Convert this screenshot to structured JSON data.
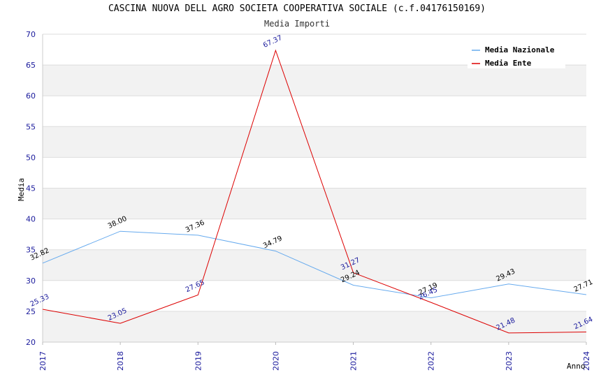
{
  "chart_data": {
    "type": "line",
    "title": "CASCINA NUOVA DELL AGRO SOCIETA COOPERATIVA SOCIALE (c.f.04176150169)",
    "subtitle": "Media Importi",
    "xlabel": "Anno",
    "ylabel": "Media",
    "x": [
      "2017",
      "2018",
      "2019",
      "2020",
      "2021",
      "2022",
      "2023",
      "2024"
    ],
    "ylim": [
      20,
      70
    ],
    "yticks": [
      20,
      25,
      30,
      35,
      40,
      45,
      50,
      55,
      60,
      65,
      70
    ],
    "grid": true,
    "legend_position": "top-right",
    "series": [
      {
        "name": "Media Nazionale",
        "color": "#66aaee",
        "values": [
          32.82,
          38.0,
          37.36,
          34.79,
          29.24,
          27.19,
          29.43,
          27.71
        ],
        "labels": [
          "32.82",
          "38.00",
          "37.36",
          "34.79",
          "29.24",
          "27.19",
          "29.43",
          "27.71"
        ]
      },
      {
        "name": "Media Ente",
        "color": "#dd0000",
        "values": [
          25.33,
          23.05,
          27.65,
          67.37,
          31.27,
          26.45,
          21.48,
          21.64
        ],
        "labels": [
          "25.33",
          "23.05",
          "27.65",
          "67.37",
          "31.27",
          "26.45",
          "21.48",
          "21.64"
        ]
      }
    ]
  }
}
